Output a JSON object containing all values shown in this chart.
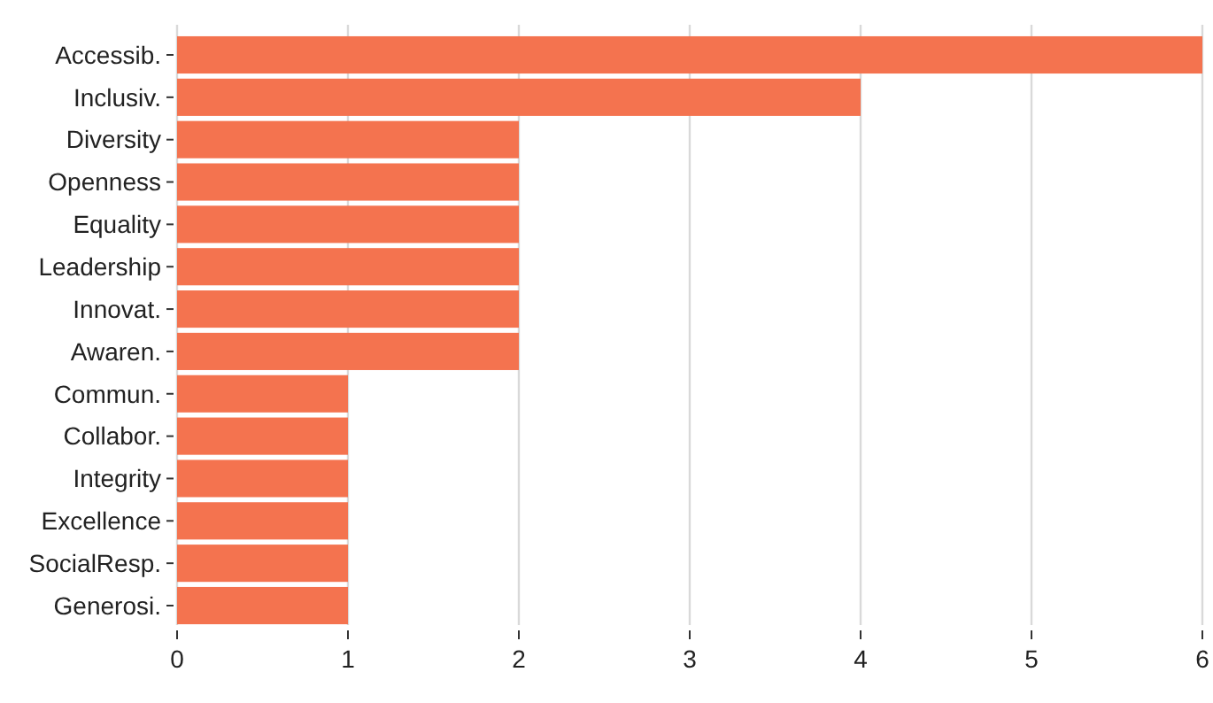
{
  "chart_data": {
    "type": "bar",
    "orientation": "horizontal",
    "categories": [
      "Accessib.",
      "Inclusiv.",
      "Diversity",
      "Openness",
      "Equality",
      "Leadership",
      "Innovat.",
      "Awaren.",
      "Commun.",
      "Collabor.",
      "Integrity",
      "Excellence",
      "SocialResp.",
      "Generosi."
    ],
    "values": [
      6,
      4,
      2,
      2,
      2,
      2,
      2,
      2,
      1,
      1,
      1,
      1,
      1,
      1
    ],
    "color": "#f4734f",
    "xlim": [
      0,
      6
    ],
    "xticks": [
      0,
      1,
      2,
      3,
      4,
      5,
      6
    ],
    "grid": "x"
  }
}
